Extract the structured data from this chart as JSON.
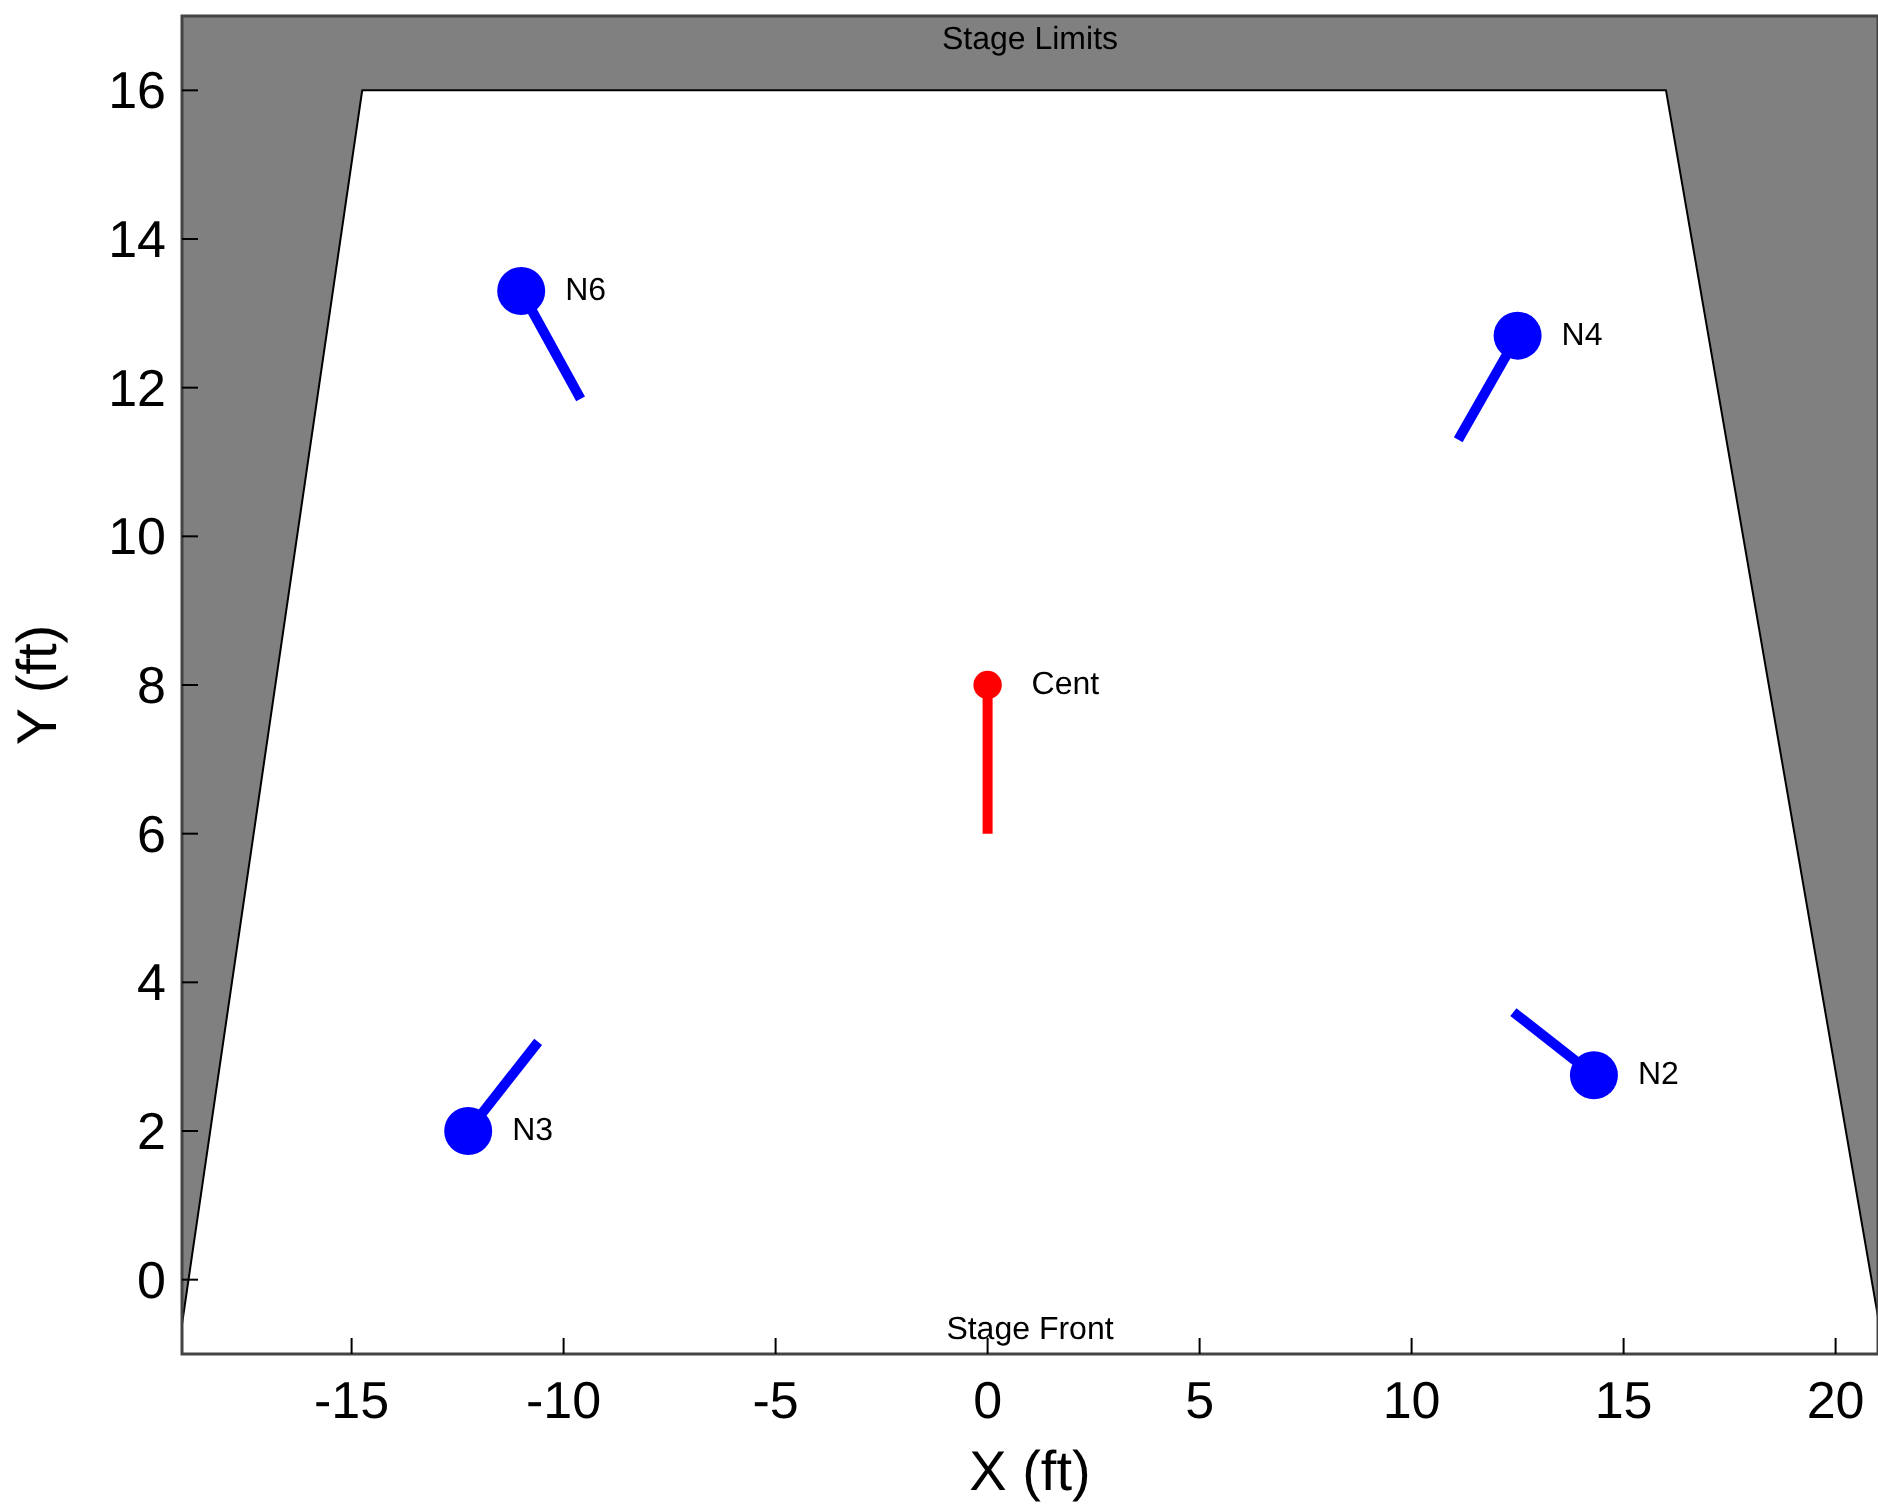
{
  "chart_data": {
    "type": "bubble",
    "xlabel": "X (ft)",
    "ylabel": "Y (ft)",
    "xlim": [
      -19,
      21
    ],
    "ylim": [
      -1,
      17
    ],
    "xticks": [
      -15,
      -10,
      -5,
      0,
      5,
      10,
      15,
      20
    ],
    "yticks": [
      0,
      2,
      4,
      6,
      8,
      10,
      12,
      14,
      16
    ],
    "grid": false,
    "series": [
      {
        "type": "line",
        "color": "#000000",
        "x": [
          -19,
          -14.75,
          16,
          21
        ],
        "values": [
          -0.6,
          16,
          16,
          -0.5
        ]
      },
      {
        "type": "line",
        "color": "#0000ff",
        "x": [
          -11,
          -9.6
        ],
        "values": [
          13.3,
          11.85
        ]
      },
      {
        "type": "line",
        "color": "#0000ff",
        "x": [
          12.5,
          11.1
        ],
        "values": [
          12.7,
          11.3
        ]
      },
      {
        "type": "line",
        "color": "#0000ff",
        "x": [
          -12.25,
          -10.6
        ],
        "values": [
          2,
          3.2
        ]
      },
      {
        "type": "line",
        "color": "#0000ff",
        "x": [
          14.3,
          12.4
        ],
        "values": [
          2.75,
          3.6
        ]
      },
      {
        "type": "line",
        "color": "#ff0000",
        "x": [
          0,
          0
        ],
        "values": [
          8,
          6
        ]
      },
      {
        "color": "#0000ff",
        "x": [
          -11,
          12.5,
          -12.25,
          14.3
        ],
        "values": [
          13.3,
          12.7,
          2,
          2.75
        ],
        "sizes": [
          1,
          1,
          1,
          1
        ]
      },
      {
        "color": "#ff0000",
        "x": [
          0
        ],
        "values": [
          8
        ],
        "sizes": [
          0.35
        ]
      }
    ],
    "annotations": [
      {
        "text": "N6",
        "x": -11,
        "y": 13.3
      },
      {
        "text": "N4",
        "x": 12.5,
        "y": 12.7
      },
      {
        "text": "N3",
        "x": -12.25,
        "y": 2
      },
      {
        "text": "N2",
        "x": 14.3,
        "y": 2.75
      },
      {
        "text": "Cent",
        "x": 0,
        "y": 8
      },
      "Stage Limits",
      "Stage Front"
    ]
  }
}
